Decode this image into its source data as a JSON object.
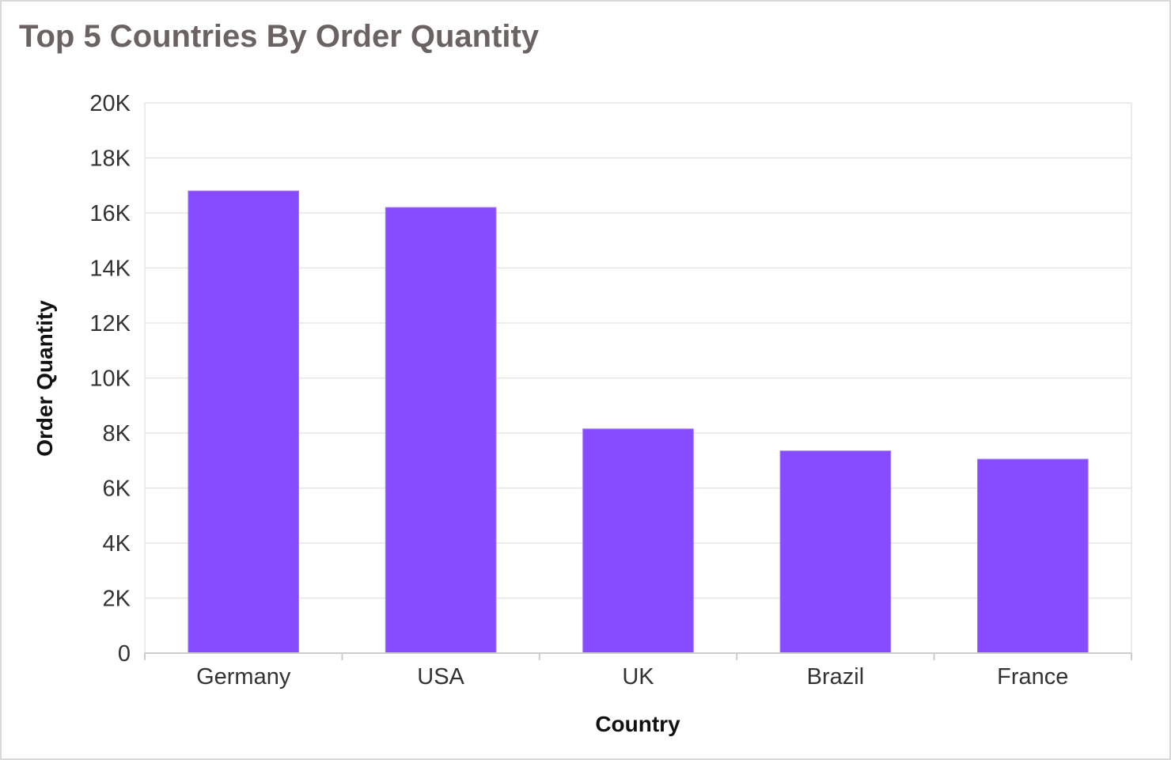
{
  "chart_data": {
    "type": "bar",
    "title": "Top 5 Countries By Order Quantity",
    "xlabel": "Country",
    "ylabel": "Order Quantity",
    "categories": [
      "Germany",
      "USA",
      "UK",
      "Brazil",
      "France"
    ],
    "values": [
      16800,
      16200,
      8150,
      7350,
      7050
    ],
    "ylim": [
      0,
      20000
    ],
    "yticks": [
      0,
      2000,
      4000,
      6000,
      8000,
      10000,
      12000,
      14000,
      16000,
      18000,
      20000
    ],
    "ytick_labels": [
      "0",
      "2K",
      "4K",
      "6K",
      "8K",
      "10K",
      "12K",
      "14K",
      "16K",
      "18K",
      "20K"
    ],
    "grid": true,
    "legend": "none",
    "colors": {
      "bar": "#874cff",
      "bar_stroke": "#a77bff",
      "grid": "#e6e6e6",
      "axis": "#cccccc"
    }
  }
}
